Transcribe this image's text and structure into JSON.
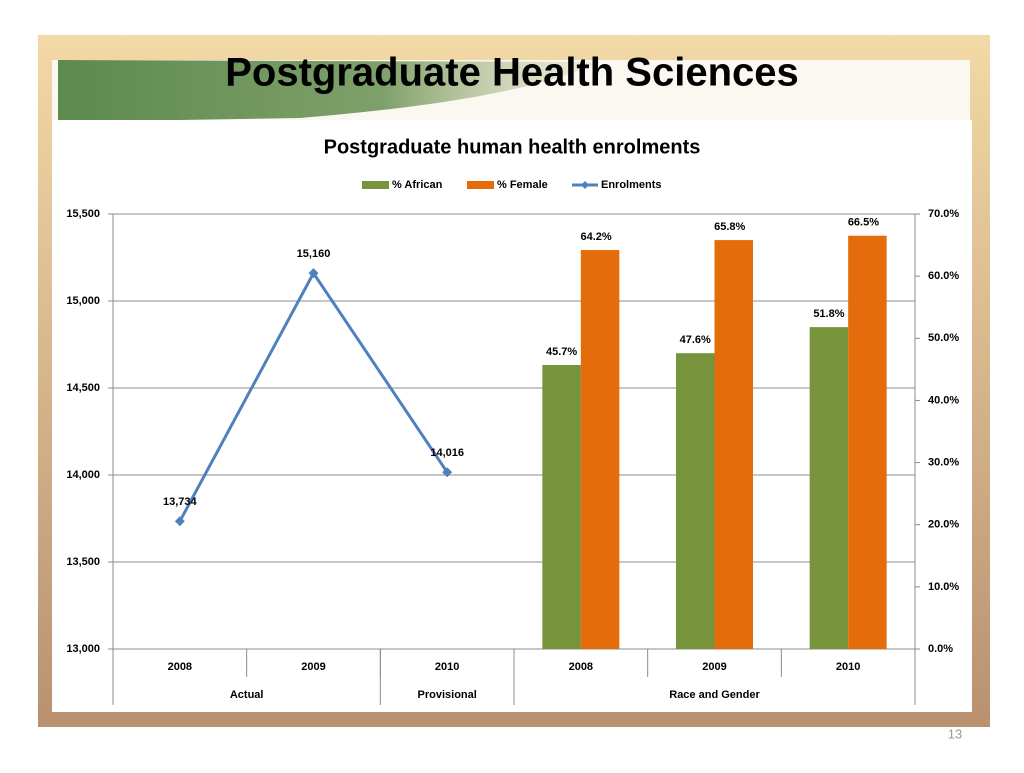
{
  "slide": {
    "title": "Postgraduate Health Sciences",
    "page_number": "13"
  },
  "chart_data": {
    "type": "combo",
    "title": "Postgraduate human health enrolments",
    "categories": [
      "2008",
      "2009",
      "2010",
      "2008",
      "2009",
      "2010"
    ],
    "group_labels": [
      "Actual",
      "Actual",
      "Provisional",
      "Race and Gender",
      "Race and Gender",
      "Race and Gender"
    ],
    "series": [
      {
        "name": "% African",
        "type": "bar",
        "axis": "y2",
        "color": "#77933c",
        "values": [
          null,
          null,
          null,
          45.7,
          47.6,
          51.8
        ],
        "value_labels": [
          null,
          null,
          null,
          "45.7%",
          "47.6%",
          "51.8%"
        ]
      },
      {
        "name": "% Female",
        "type": "bar",
        "axis": "y2",
        "color": "#e46c0a",
        "values": [
          null,
          null,
          null,
          64.2,
          65.8,
          66.5
        ],
        "value_labels": [
          null,
          null,
          null,
          "64.2%",
          "65.8%",
          "66.5%"
        ]
      },
      {
        "name": "Enrolments",
        "type": "line",
        "color": "#4f81bd",
        "values": [
          13734,
          15160,
          14016,
          null,
          null,
          null
        ],
        "value_labels": [
          "13,734",
          "15,160",
          "14,016",
          null,
          null,
          null
        ]
      }
    ],
    "ylim": [
      13000,
      15500
    ],
    "yticks": [
      {
        "value": 13000,
        "label": "13,000"
      },
      {
        "value": 13500,
        "label": "13,500"
      },
      {
        "value": 14000,
        "label": "14,000"
      },
      {
        "value": 14500,
        "label": "14,500"
      },
      {
        "value": 15000,
        "label": "15,000"
      },
      {
        "value": 15500,
        "label": "15,500"
      }
    ],
    "y2lim": [
      0,
      70
    ],
    "y2ticks": [
      {
        "value": 0,
        "label": "0.0%"
      },
      {
        "value": 10,
        "label": "10.0%"
      },
      {
        "value": 20,
        "label": "20.0%"
      },
      {
        "value": 30,
        "label": "30.0%"
      },
      {
        "value": 40,
        "label": "40.0%"
      },
      {
        "value": 50,
        "label": "50.0%"
      },
      {
        "value": 60,
        "label": "60.0%"
      },
      {
        "value": 70,
        "label": "70.0%"
      }
    ],
    "grid": true,
    "legend": "top"
  }
}
